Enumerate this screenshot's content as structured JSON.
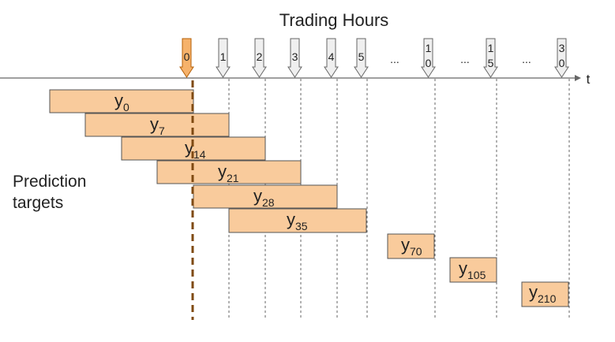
{
  "title": "Trading Hours",
  "axis_label": "t",
  "side_label": {
    "line1": "Prediction",
    "line2": "targets"
  },
  "colors": {
    "box_fill": "#f9cb9c",
    "box_stroke": "#555555",
    "marker_zero_fill": "#f6b26b",
    "marker_zero_stroke": "#b45f06",
    "marker_fill": "#efefef",
    "marker_stroke": "#666666",
    "now_line": "#7f4a12",
    "grid_line": "#666666",
    "axis": "#666666"
  },
  "markers": [
    {
      "main": "0",
      "sub": "",
      "zero": true
    },
    {
      "main": "1",
      "sub": ""
    },
    {
      "main": "2",
      "sub": ""
    },
    {
      "main": "3",
      "sub": ""
    },
    {
      "main": "4",
      "sub": ""
    },
    {
      "main": "5",
      "sub": ""
    },
    {
      "main": "1",
      "sub": "0"
    },
    {
      "main": "1",
      "sub": "5"
    },
    {
      "main": "3",
      "sub": "0"
    }
  ],
  "ellipses": [
    "...",
    "...",
    "..."
  ],
  "targets": [
    {
      "label": "y",
      "sub": "0"
    },
    {
      "label": "y",
      "sub": "7"
    },
    {
      "label": "y",
      "sub": "14"
    },
    {
      "label": "y",
      "sub": "21"
    },
    {
      "label": "y",
      "sub": "28"
    },
    {
      "label": "y",
      "sub": "35"
    },
    {
      "label": "y",
      "sub": "70"
    },
    {
      "label": "y",
      "sub": "105"
    },
    {
      "label": "y",
      "sub": "210"
    }
  ]
}
